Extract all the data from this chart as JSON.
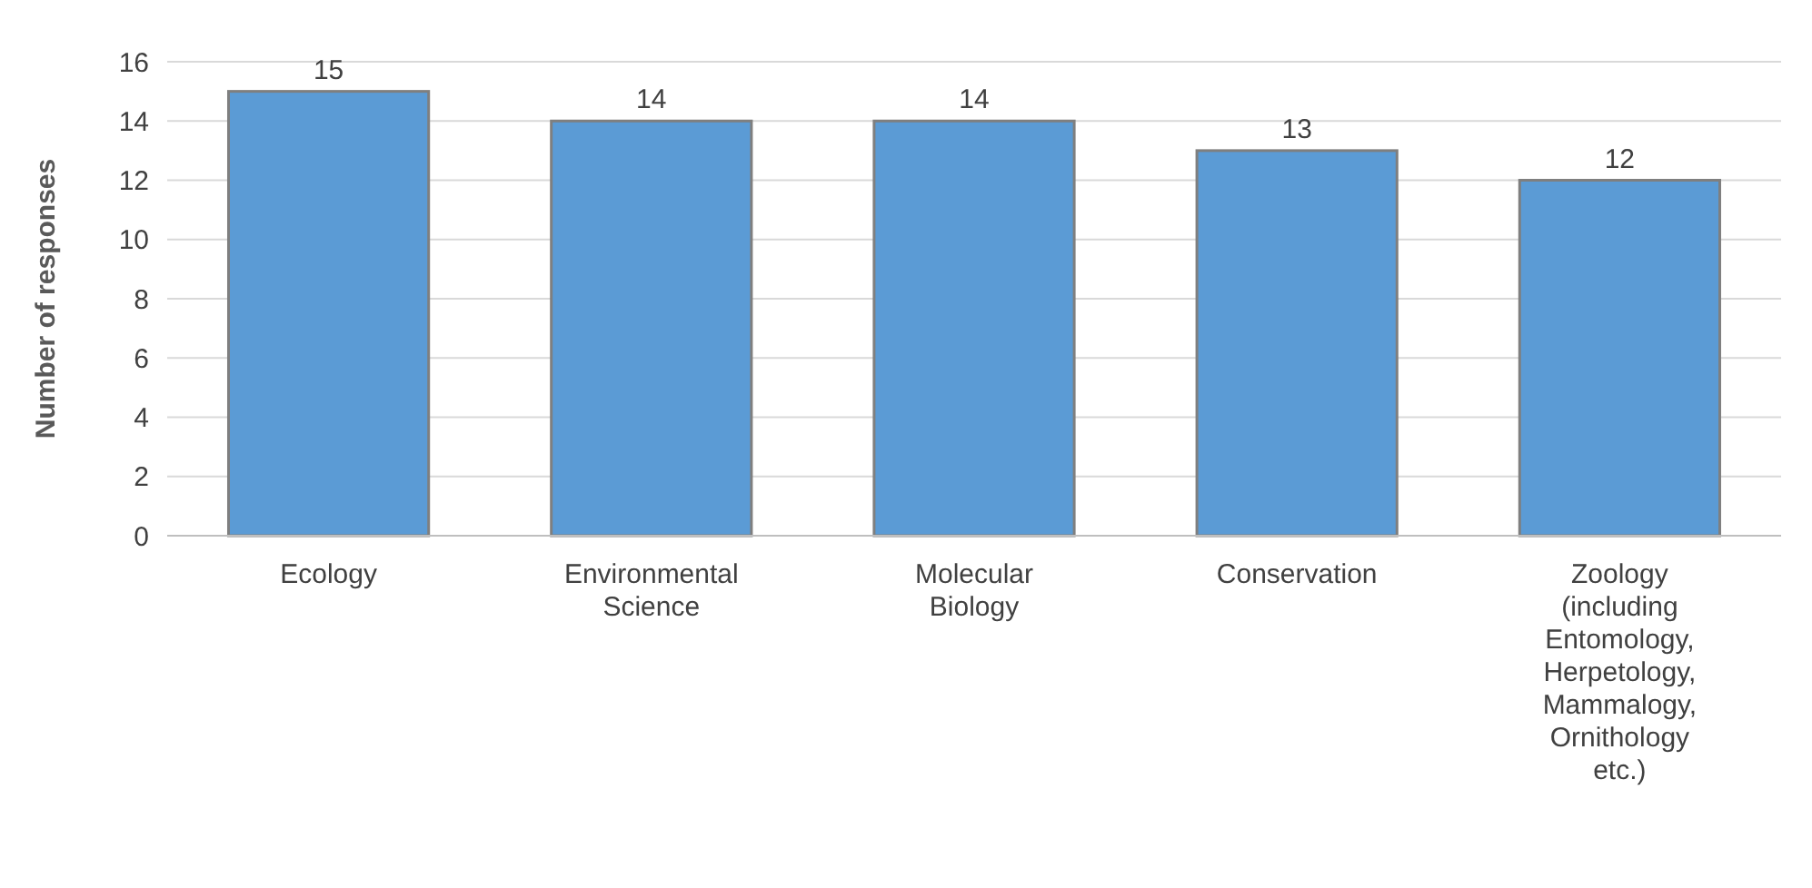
{
  "chart_data": {
    "type": "bar",
    "ylabel": "Number of responses",
    "categories": [
      "Ecology",
      "Environmental Science",
      "Molecular Biology",
      "Conservation",
      "Zoology (including Entomology, Herpetology, Mammalogy, Ornithology etc.)"
    ],
    "values": [
      15,
      14,
      14,
      13,
      12
    ],
    "color": "#5b9bd5",
    "ylim": [
      0,
      16
    ],
    "yticks": [
      0,
      2,
      4,
      6,
      8,
      10,
      12,
      14,
      16
    ],
    "grid": "y",
    "data_labels": true
  }
}
